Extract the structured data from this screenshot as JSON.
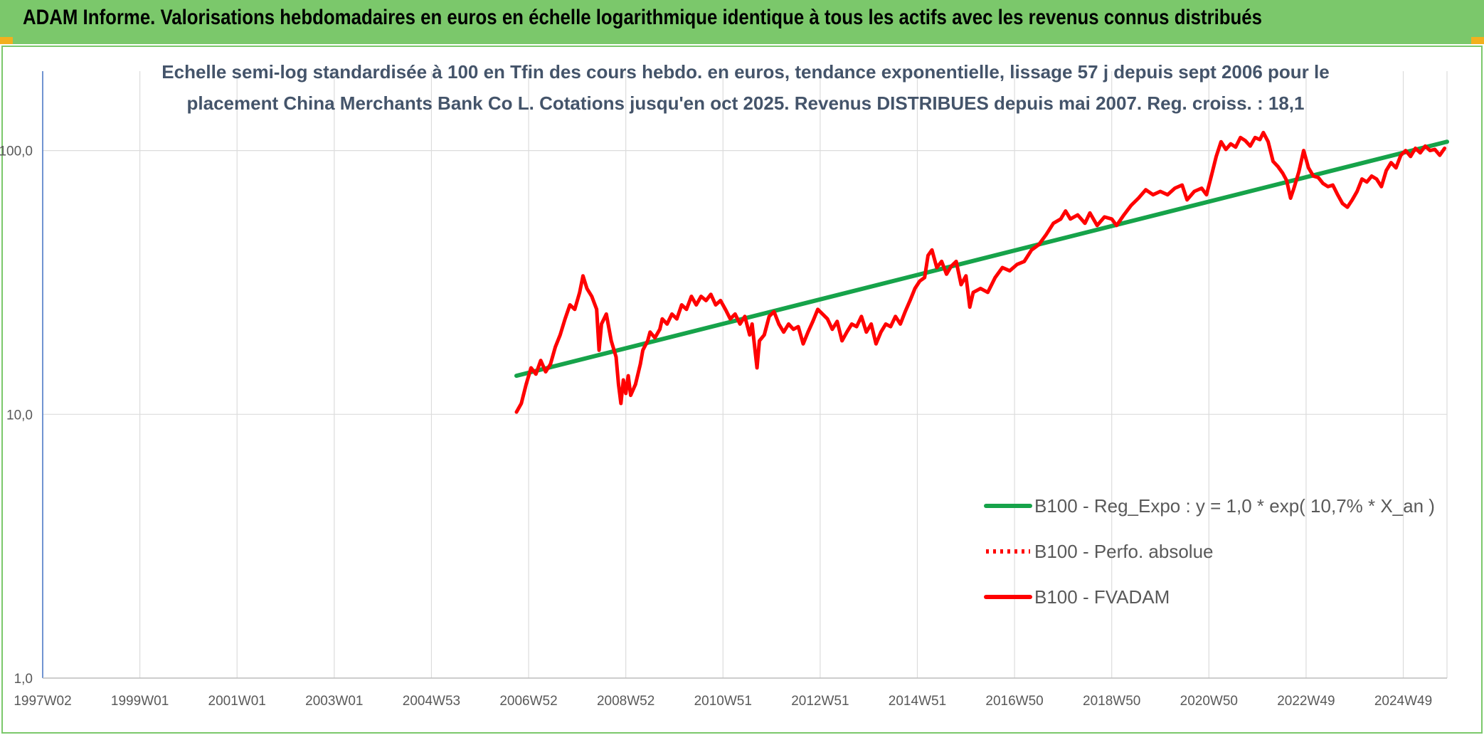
{
  "header": {
    "title": "ADAM Informe. Valorisations hebdomadaires en euros en échelle logarithmique identique à tous les actifs avec les revenus connus distribués",
    "color": "#7bc86b",
    "corner_color": "#f2b01e"
  },
  "chart_data": {
    "type": "line",
    "title": "",
    "subtitle_lines": [
      "Echelle semi-log standardisée à 100 en Tfin des cours hebdo. en euros, tendance exponentielle, lissage 57 j depuis sept 2006 pour le",
      "placement China Merchants Bank Co L. Cotations jusqu'en oct 2025. Revenus DISTRIBUES depuis mai 2007. Reg. croiss. : 18,1"
    ],
    "y_scale": "log",
    "ylim": [
      1,
      200
    ],
    "y_ticks": [
      {
        "value": 1,
        "label": "1,0"
      },
      {
        "value": 10,
        "label": "10,0"
      },
      {
        "value": 100,
        "label": "100,0"
      }
    ],
    "xlim": [
      1997.0,
      2025.9
    ],
    "x_ticks": [
      {
        "value": 1997.0,
        "label": "1997W02"
      },
      {
        "value": 1999.0,
        "label": "1999W01"
      },
      {
        "value": 2001.0,
        "label": "2001W01"
      },
      {
        "value": 2003.0,
        "label": "2003W01"
      },
      {
        "value": 2005.0,
        "label": "2004W53"
      },
      {
        "value": 2007.0,
        "label": "2006W52"
      },
      {
        "value": 2009.0,
        "label": "2008W52"
      },
      {
        "value": 2011.0,
        "label": "2010W51"
      },
      {
        "value": 2013.0,
        "label": "2012W51"
      },
      {
        "value": 2015.0,
        "label": "2014W51"
      },
      {
        "value": 2017.0,
        "label": "2016W50"
      },
      {
        "value": 2019.0,
        "label": "2018W50"
      },
      {
        "value": 2021.0,
        "label": "2020W50"
      },
      {
        "value": 2023.0,
        "label": "2022W49"
      },
      {
        "value": 2025.0,
        "label": "2024W49"
      }
    ],
    "grid": "vertical",
    "legend_position": "bottom-right",
    "series": [
      {
        "name": "B100 - Reg_Expo : y = 1,0 * exp( 10,7% * X_an )",
        "color": "#16a34a",
        "style": "solid",
        "points": [
          [
            2006.75,
            14.0
          ],
          [
            2025.9,
            108.0
          ]
        ]
      },
      {
        "name": "B100 - Perfo. absolue",
        "color": "#ff0000",
        "style": "dotted",
        "points": []
      },
      {
        "name": "B100 - FVADAM",
        "color": "#ff0000",
        "style": "solid",
        "points": [
          [
            2006.75,
            10.2
          ],
          [
            2006.85,
            11.0
          ],
          [
            2006.95,
            13.0
          ],
          [
            2007.05,
            15.0
          ],
          [
            2007.15,
            14.2
          ],
          [
            2007.25,
            16.0
          ],
          [
            2007.35,
            14.5
          ],
          [
            2007.45,
            15.5
          ],
          [
            2007.55,
            18.0
          ],
          [
            2007.65,
            20.0
          ],
          [
            2007.75,
            23.0
          ],
          [
            2007.85,
            26.0
          ],
          [
            2007.95,
            25.0
          ],
          [
            2008.05,
            29.0
          ],
          [
            2008.12,
            33.5
          ],
          [
            2008.2,
            30.0
          ],
          [
            2008.3,
            28.0
          ],
          [
            2008.4,
            25.0
          ],
          [
            2008.45,
            17.5
          ],
          [
            2008.5,
            22.0
          ],
          [
            2008.6,
            24.0
          ],
          [
            2008.7,
            19.0
          ],
          [
            2008.8,
            16.5
          ],
          [
            2008.85,
            13.0
          ],
          [
            2008.9,
            11.0
          ],
          [
            2008.95,
            13.5
          ],
          [
            2009.0,
            12.0
          ],
          [
            2009.05,
            14.0
          ],
          [
            2009.1,
            11.8
          ],
          [
            2009.2,
            13.0
          ],
          [
            2009.3,
            15.5
          ],
          [
            2009.35,
            17.5
          ],
          [
            2009.45,
            19.0
          ],
          [
            2009.5,
            20.5
          ],
          [
            2009.6,
            19.5
          ],
          [
            2009.7,
            21.0
          ],
          [
            2009.75,
            23.0
          ],
          [
            2009.85,
            22.0
          ],
          [
            2009.95,
            24.0
          ],
          [
            2010.05,
            23.0
          ],
          [
            2010.15,
            26.0
          ],
          [
            2010.25,
            25.0
          ],
          [
            2010.35,
            28.0
          ],
          [
            2010.45,
            26.0
          ],
          [
            2010.55,
            28.0
          ],
          [
            2010.65,
            27.0
          ],
          [
            2010.75,
            28.5
          ],
          [
            2010.85,
            26.0
          ],
          [
            2010.95,
            27.0
          ],
          [
            2011.05,
            25.0
          ],
          [
            2011.15,
            23.0
          ],
          [
            2011.25,
            24.0
          ],
          [
            2011.35,
            22.0
          ],
          [
            2011.45,
            23.5
          ],
          [
            2011.55,
            20.0
          ],
          [
            2011.6,
            22.0
          ],
          [
            2011.7,
            15.0
          ],
          [
            2011.75,
            19.0
          ],
          [
            2011.85,
            20.0
          ],
          [
            2011.95,
            23.5
          ],
          [
            2012.05,
            24.5
          ],
          [
            2012.15,
            22.0
          ],
          [
            2012.25,
            20.5
          ],
          [
            2012.35,
            22.0
          ],
          [
            2012.45,
            21.0
          ],
          [
            2012.55,
            21.5
          ],
          [
            2012.65,
            18.5
          ],
          [
            2012.75,
            20.5
          ],
          [
            2012.85,
            22.5
          ],
          [
            2012.95,
            25.0
          ],
          [
            2013.05,
            24.0
          ],
          [
            2013.15,
            23.0
          ],
          [
            2013.25,
            21.0
          ],
          [
            2013.35,
            22.5
          ],
          [
            2013.45,
            19.0
          ],
          [
            2013.55,
            20.5
          ],
          [
            2013.65,
            22.0
          ],
          [
            2013.75,
            21.5
          ],
          [
            2013.85,
            23.5
          ],
          [
            2013.95,
            20.5
          ],
          [
            2014.05,
            22.0
          ],
          [
            2014.15,
            18.5
          ],
          [
            2014.25,
            20.5
          ],
          [
            2014.35,
            22.0
          ],
          [
            2014.45,
            21.5
          ],
          [
            2014.55,
            23.5
          ],
          [
            2014.65,
            22.0
          ],
          [
            2014.75,
            24.5
          ],
          [
            2014.85,
            27.0
          ],
          [
            2014.95,
            30.0
          ],
          [
            2015.05,
            32.0
          ],
          [
            2015.15,
            33.0
          ],
          [
            2015.22,
            40.0
          ],
          [
            2015.3,
            42.0
          ],
          [
            2015.4,
            36.0
          ],
          [
            2015.5,
            38.0
          ],
          [
            2015.6,
            34.0
          ],
          [
            2015.7,
            36.5
          ],
          [
            2015.8,
            38.0
          ],
          [
            2015.9,
            31.0
          ],
          [
            2016.0,
            33.5
          ],
          [
            2016.08,
            25.5
          ],
          [
            2016.15,
            29.0
          ],
          [
            2016.3,
            30.0
          ],
          [
            2016.45,
            29.0
          ],
          [
            2016.6,
            33.0
          ],
          [
            2016.75,
            36.0
          ],
          [
            2016.9,
            35.0
          ],
          [
            2017.05,
            37.0
          ],
          [
            2017.2,
            38.0
          ],
          [
            2017.35,
            42.0
          ],
          [
            2017.5,
            44.0
          ],
          [
            2017.65,
            48.0
          ],
          [
            2017.8,
            53.0
          ],
          [
            2017.95,
            55.0
          ],
          [
            2018.05,
            59.0
          ],
          [
            2018.15,
            55.0
          ],
          [
            2018.3,
            57.0
          ],
          [
            2018.45,
            53.0
          ],
          [
            2018.55,
            58.0
          ],
          [
            2018.7,
            52.0
          ],
          [
            2018.85,
            56.0
          ],
          [
            2019.0,
            55.0
          ],
          [
            2019.1,
            52.0
          ],
          [
            2019.25,
            57.0
          ],
          [
            2019.4,
            62.0
          ],
          [
            2019.55,
            66.0
          ],
          [
            2019.7,
            71.0
          ],
          [
            2019.85,
            68.0
          ],
          [
            2020.0,
            70.0
          ],
          [
            2020.15,
            68.0
          ],
          [
            2020.3,
            72.0
          ],
          [
            2020.45,
            74.0
          ],
          [
            2020.55,
            65.0
          ],
          [
            2020.7,
            70.0
          ],
          [
            2020.85,
            72.0
          ],
          [
            2020.95,
            68.0
          ],
          [
            2021.05,
            80.0
          ],
          [
            2021.15,
            95.0
          ],
          [
            2021.25,
            108.0
          ],
          [
            2021.35,
            101.0
          ],
          [
            2021.45,
            106.0
          ],
          [
            2021.55,
            103.0
          ],
          [
            2021.65,
            112.0
          ],
          [
            2021.75,
            109.0
          ],
          [
            2021.85,
            104.0
          ],
          [
            2021.95,
            112.0
          ],
          [
            2022.05,
            110.0
          ],
          [
            2022.12,
            117.0
          ],
          [
            2022.22,
            108.0
          ],
          [
            2022.32,
            91.0
          ],
          [
            2022.42,
            87.0
          ],
          [
            2022.52,
            82.0
          ],
          [
            2022.6,
            77.0
          ],
          [
            2022.68,
            66.0
          ],
          [
            2022.75,
            72.0
          ],
          [
            2022.85,
            83.0
          ],
          [
            2022.95,
            100.0
          ],
          [
            2023.05,
            86.0
          ],
          [
            2023.15,
            80.0
          ],
          [
            2023.25,
            79.0
          ],
          [
            2023.35,
            75.0
          ],
          [
            2023.45,
            73.0
          ],
          [
            2023.55,
            74.0
          ],
          [
            2023.65,
            68.0
          ],
          [
            2023.75,
            63.0
          ],
          [
            2023.85,
            61.0
          ],
          [
            2023.95,
            65.0
          ],
          [
            2024.05,
            70.0
          ],
          [
            2024.15,
            78.0
          ],
          [
            2024.25,
            76.0
          ],
          [
            2024.35,
            80.0
          ],
          [
            2024.45,
            78.0
          ],
          [
            2024.55,
            73.0
          ],
          [
            2024.65,
            84.0
          ],
          [
            2024.75,
            90.0
          ],
          [
            2024.85,
            86.0
          ],
          [
            2024.95,
            96.0
          ],
          [
            2025.05,
            100.0
          ],
          [
            2025.15,
            95.0
          ],
          [
            2025.25,
            102.0
          ],
          [
            2025.35,
            98.0
          ],
          [
            2025.45,
            104.0
          ],
          [
            2025.55,
            100.0
          ],
          [
            2025.65,
            101.0
          ],
          [
            2025.75,
            96.0
          ],
          [
            2025.85,
            102.0
          ]
        ]
      }
    ]
  }
}
